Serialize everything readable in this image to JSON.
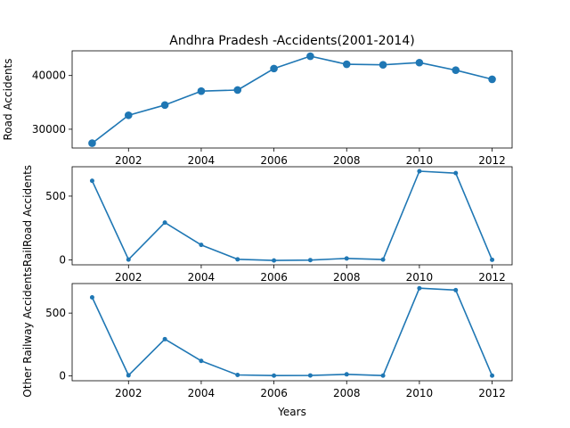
{
  "chart_data": {
    "type": "line",
    "title": "Andhra Pradesh -Accidents(2001-2014)",
    "xlabel": "Years",
    "x": [
      2001,
      2002,
      2003,
      2004,
      2005,
      2006,
      2007,
      2008,
      2009,
      2010,
      2011,
      2012
    ],
    "xticks": [
      2002,
      2004,
      2006,
      2008,
      2010,
      2012
    ],
    "xlim": [
      2000.45,
      2012.55
    ],
    "color": "#1f77b4",
    "grid": false,
    "panels": [
      {
        "ylabel": "Road Accidents",
        "values": [
          27400,
          32600,
          34500,
          37100,
          37300,
          41300,
          43600,
          42100,
          42000,
          42400,
          41000,
          39300
        ],
        "ylim": [
          26500,
          44600
        ],
        "yticks": [
          30000,
          40000
        ],
        "marker": "large"
      },
      {
        "ylabel": "RailRoad Accidents",
        "values": [
          620,
          3,
          293,
          118,
          5,
          -4,
          -1,
          12,
          3,
          695,
          680,
          1
        ],
        "ylim": [
          -38,
          730
        ],
        "yticks": [
          0,
          500
        ],
        "marker": "small"
      },
      {
        "ylabel": "Other Railway Accidents",
        "values": [
          625,
          5,
          293,
          120,
          8,
          3,
          4,
          13,
          3,
          698,
          683,
          3
        ],
        "ylim": [
          -38,
          735
        ],
        "yticks": [
          0,
          500
        ],
        "marker": "small"
      }
    ]
  }
}
